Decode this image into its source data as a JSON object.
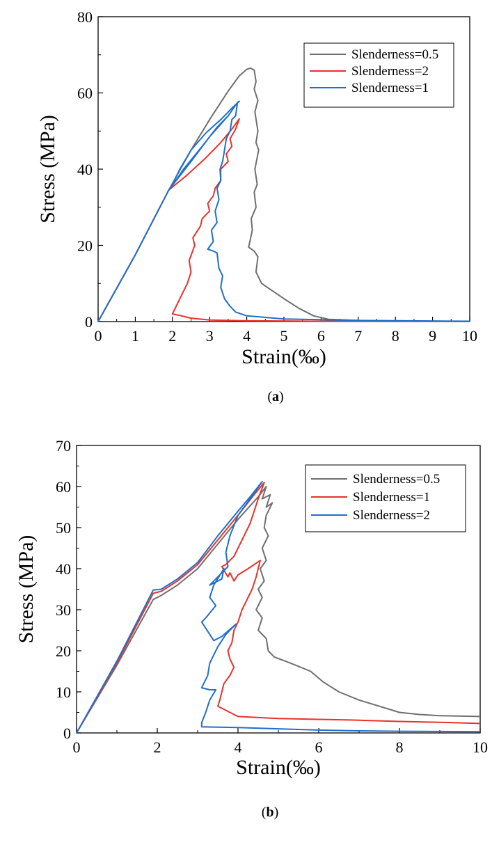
{
  "chart_data": [
    {
      "type": "line",
      "panel_label_prefix": "(",
      "panel_label_letter": "a",
      "panel_label_suffix": ")",
      "xlabel": "Strain(‰)",
      "ylabel": "Stress (MPa)",
      "xlim": [
        0,
        10
      ],
      "ylim": [
        0,
        80
      ],
      "xticks": [
        "0",
        "1",
        "2",
        "3",
        "4",
        "5",
        "6",
        "7",
        "8",
        "9",
        "10"
      ],
      "yticks": [
        "0",
        "20",
        "40",
        "60",
        "80"
      ],
      "grid": false,
      "legend_position": "top-right",
      "series": [
        {
          "name": "Slenderness=0.5",
          "color": "#6f6f6f",
          "points": [
            [
              0,
              0
            ],
            [
              1,
              17.5
            ],
            [
              1.9,
              34.5
            ],
            [
              2.5,
              45
            ],
            [
              3,
              53
            ],
            [
              3.5,
              60.5
            ],
            [
              3.8,
              64.5
            ],
            [
              4,
              66.2
            ],
            [
              4.1,
              66.5
            ],
            [
              4.2,
              66
            ],
            [
              4.25,
              63
            ],
            [
              4.2,
              61
            ],
            [
              4.3,
              58
            ],
            [
              4.22,
              55
            ],
            [
              4.3,
              50
            ],
            [
              4.25,
              47
            ],
            [
              4.32,
              45
            ],
            [
              4.22,
              40
            ],
            [
              4.28,
              36
            ],
            [
              4.2,
              34
            ],
            [
              4.25,
              30
            ],
            [
              4.12,
              27
            ],
            [
              4.15,
              24
            ],
            [
              4.05,
              19.5
            ],
            [
              4.2,
              18.5
            ],
            [
              4.3,
              17
            ],
            [
              4.25,
              13
            ],
            [
              4.4,
              10
            ],
            [
              4.7,
              8
            ],
            [
              5,
              6
            ],
            [
              5.4,
              3.5
            ],
            [
              5.8,
              1.5
            ],
            [
              6.2,
              0.6
            ],
            [
              7,
              0.3
            ],
            [
              8,
              0.15
            ],
            [
              10,
              0.05
            ]
          ]
        },
        {
          "name": "Slenderness=2",
          "color": "#e8322a",
          "points": [
            [
              0,
              0
            ],
            [
              1,
              17.5
            ],
            [
              1.9,
              34.5
            ],
            [
              2.4,
              38.5
            ],
            [
              2.9,
              43
            ],
            [
              3.3,
              47
            ],
            [
              3.6,
              50.5
            ],
            [
              3.8,
              53.2
            ],
            [
              3.7,
              50.5
            ],
            [
              3.55,
              48
            ],
            [
              3.6,
              46
            ],
            [
              3.45,
              44
            ],
            [
              3.5,
              42
            ],
            [
              3.3,
              40
            ],
            [
              3.3,
              37
            ],
            [
              3.15,
              35
            ],
            [
              3.1,
              33
            ],
            [
              2.95,
              31
            ],
            [
              3,
              29
            ],
            [
              2.8,
              27
            ],
            [
              2.75,
              25
            ],
            [
              2.55,
              22
            ],
            [
              2.6,
              20
            ],
            [
              2.45,
              16
            ],
            [
              2.5,
              13
            ],
            [
              2.4,
              10
            ],
            [
              2.25,
              7
            ],
            [
              2.1,
              4
            ],
            [
              2,
              2
            ],
            [
              2.2,
              1.6
            ],
            [
              2.5,
              0.9
            ],
            [
              3,
              0.4
            ],
            [
              4,
              0.2
            ],
            [
              6,
              0.1
            ],
            [
              10,
              0.05
            ]
          ]
        },
        {
          "name": "Slenderness=1",
          "color": "#1f6fcc",
          "points": [
            [
              0,
              0
            ],
            [
              1,
              17.5
            ],
            [
              1.9,
              34.5
            ],
            [
              2.5,
              42
            ],
            [
              3,
              48.5
            ],
            [
              3.5,
              54
            ],
            [
              3.75,
              57.5
            ],
            [
              3.8,
              57.8
            ],
            [
              3.6,
              56
            ],
            [
              3.3,
              53
            ],
            [
              2.9,
              49.5
            ],
            [
              2.5,
              45
            ],
            [
              2.2,
              40
            ],
            [
              1.95,
              35
            ],
            [
              2.3,
              40
            ],
            [
              2.8,
              46
            ],
            [
              3.2,
              51
            ],
            [
              3.5,
              54
            ],
            [
              3.75,
              57.5
            ],
            [
              3.7,
              54
            ],
            [
              3.6,
              53
            ],
            [
              3.55,
              50
            ],
            [
              3.45,
              48
            ],
            [
              3.4,
              45
            ],
            [
              3.35,
              42
            ],
            [
              3.28,
              40
            ],
            [
              3.3,
              37
            ],
            [
              3.2,
              35
            ],
            [
              3.25,
              32
            ],
            [
              3.15,
              29
            ],
            [
              3.2,
              26
            ],
            [
              3.05,
              24
            ],
            [
              3.1,
              21
            ],
            [
              2.95,
              19
            ],
            [
              3.1,
              18.5
            ],
            [
              3.2,
              18
            ],
            [
              3.25,
              14
            ],
            [
              3.35,
              12
            ],
            [
              3.3,
              9
            ],
            [
              3.4,
              6
            ],
            [
              3.55,
              4
            ],
            [
              3.7,
              2.5
            ],
            [
              4,
              1.5
            ],
            [
              5,
              0.7
            ],
            [
              7,
              0.3
            ],
            [
              10,
              0.1
            ]
          ]
        }
      ]
    },
    {
      "type": "line",
      "panel_label_prefix": "(",
      "panel_label_letter": "b",
      "panel_label_suffix": ")",
      "xlabel": "Strain(‰)",
      "ylabel": "Stress (MPa)",
      "xlim": [
        0,
        10
      ],
      "ylim": [
        0,
        70
      ],
      "xticks": [
        "0",
        "2",
        "4",
        "6",
        "8",
        "10"
      ],
      "yticks": [
        "0",
        "10",
        "20",
        "30",
        "40",
        "50",
        "60",
        "70"
      ],
      "grid": false,
      "legend_position": "top-right",
      "series": [
        {
          "name": "Slenderness=0.5",
          "color": "#6f6f6f",
          "points": [
            [
              0,
              0
            ],
            [
              1,
              16.5
            ],
            [
              1.9,
              32.5
            ],
            [
              2.1,
              33.5
            ],
            [
              2.5,
              36
            ],
            [
              3,
              40
            ],
            [
              3.5,
              46
            ],
            [
              4,
              52
            ],
            [
              4.5,
              57.5
            ],
            [
              4.7,
              60
            ],
            [
              4.6,
              57
            ],
            [
              4.8,
              58
            ],
            [
              4.7,
              55
            ],
            [
              4.85,
              56
            ],
            [
              4.7,
              53
            ],
            [
              4.65,
              50
            ],
            [
              4.75,
              48
            ],
            [
              4.6,
              45
            ],
            [
              4.7,
              42
            ],
            [
              4.55,
              40
            ],
            [
              4.65,
              37
            ],
            [
              4.5,
              35
            ],
            [
              4.6,
              33
            ],
            [
              4.45,
              30
            ],
            [
              4.6,
              28
            ],
            [
              4.5,
              25
            ],
            [
              4.7,
              23
            ],
            [
              4.75,
              20
            ],
            [
              4.9,
              18.5
            ],
            [
              5.3,
              17
            ],
            [
              5.8,
              15
            ],
            [
              6.1,
              12.5
            ],
            [
              6.5,
              10
            ],
            [
              7,
              8
            ],
            [
              7.5,
              6.5
            ],
            [
              8,
              5
            ],
            [
              8.5,
              4.5
            ],
            [
              9,
              4.2
            ],
            [
              10,
              4
            ]
          ]
        },
        {
          "name": "Slenderness=1",
          "color": "#e8322a",
          "points": [
            [
              0,
              0
            ],
            [
              1,
              17
            ],
            [
              1.9,
              34
            ],
            [
              2.1,
              34.5
            ],
            [
              2.5,
              37
            ],
            [
              3,
              41
            ],
            [
              3.5,
              47
            ],
            [
              4,
              53
            ],
            [
              4.4,
              58
            ],
            [
              4.65,
              61
            ],
            [
              4.5,
              57
            ],
            [
              4.4,
              54
            ],
            [
              4.3,
              51
            ],
            [
              4.2,
              49
            ],
            [
              4.1,
              47
            ],
            [
              4,
              45
            ],
            [
              3.9,
              43
            ],
            [
              3.7,
              41
            ],
            [
              3.6,
              40.5
            ],
            [
              3.75,
              38
            ],
            [
              3.8,
              39
            ],
            [
              3.9,
              37
            ],
            [
              4,
              38.5
            ],
            [
              4.25,
              40
            ],
            [
              4.55,
              42
            ],
            [
              4.45,
              38
            ],
            [
              4.35,
              35
            ],
            [
              4.2,
              32
            ],
            [
              4.1,
              30
            ],
            [
              4,
              27
            ],
            [
              3.9,
              25
            ],
            [
              3.85,
              22
            ],
            [
              3.75,
              20
            ],
            [
              3.8,
              18
            ],
            [
              3.9,
              16
            ],
            [
              3.8,
              14
            ],
            [
              3.65,
              12
            ],
            [
              3.6,
              10
            ],
            [
              3.55,
              8
            ],
            [
              3.5,
              6.5
            ],
            [
              3.8,
              5
            ],
            [
              4,
              4
            ],
            [
              5,
              3.5
            ],
            [
              6,
              3.3
            ],
            [
              7,
              3.1
            ],
            [
              8,
              2.8
            ],
            [
              9,
              2.6
            ],
            [
              10,
              2.3
            ]
          ]
        },
        {
          "name": "Slenderness=2",
          "color": "#1f6fcc",
          "points": [
            [
              0,
              0
            ],
            [
              1,
              17.5
            ],
            [
              1.9,
              34.8
            ],
            [
              2.1,
              35
            ],
            [
              2.5,
              37.5
            ],
            [
              3,
              41.5
            ],
            [
              3.5,
              48
            ],
            [
              4,
              54
            ],
            [
              4.3,
              57.5
            ],
            [
              4.6,
              61.2
            ],
            [
              4.3,
              57
            ],
            [
              4,
              53
            ],
            [
              3.8,
              48
            ],
            [
              3.7,
              44
            ],
            [
              3.75,
              40.5
            ],
            [
              3.5,
              38
            ],
            [
              3.3,
              36
            ],
            [
              3.6,
              37.5
            ],
            [
              3.65,
              40
            ],
            [
              3.4,
              36
            ],
            [
              3.3,
              33
            ],
            [
              3.45,
              31
            ],
            [
              3.2,
              28
            ],
            [
              3.1,
              27
            ],
            [
              3.3,
              24
            ],
            [
              3.4,
              22.5
            ],
            [
              3.6,
              23.5
            ],
            [
              3.95,
              26.5
            ],
            [
              3.7,
              24
            ],
            [
              3.5,
              21
            ],
            [
              3.3,
              17
            ],
            [
              3.25,
              14
            ],
            [
              3.1,
              11
            ],
            [
              3.3,
              10.5
            ],
            [
              3.45,
              10.5
            ],
            [
              3.3,
              8
            ],
            [
              3.2,
              5
            ],
            [
              3.1,
              2.5
            ],
            [
              3.1,
              1.5
            ],
            [
              4,
              1.3
            ],
            [
              5,
              1
            ],
            [
              6,
              0.7
            ],
            [
              7,
              0.5
            ],
            [
              8,
              0.4
            ],
            [
              10,
              0.3
            ]
          ]
        }
      ]
    }
  ]
}
